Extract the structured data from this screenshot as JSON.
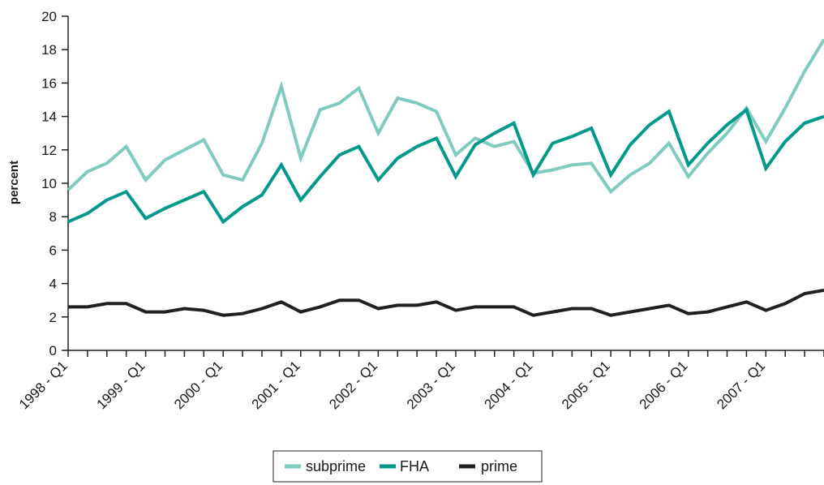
{
  "chart_data": {
    "type": "line",
    "title": "",
    "xlabel": "",
    "ylabel": "percent",
    "ylim": [
      0,
      20
    ],
    "yticks": [
      "0",
      "2",
      "4",
      "6",
      "8",
      "10",
      "12",
      "14",
      "16",
      "18",
      "20"
    ],
    "xtick_labels": [
      "1998 - Q1",
      "1999 - Q1",
      "2000 - Q1",
      "2001 - Q1",
      "2002 - Q1",
      "2003 - Q1",
      "2004 - Q1",
      "2005 - Q1",
      "2006 - Q1",
      "2007 - Q1"
    ],
    "x": [
      "1998 - Q1",
      "1998 - Q2",
      "1998 - Q3",
      "1998 - Q4",
      "1999 - Q1",
      "1999 - Q2",
      "1999 - Q3",
      "1999 - Q4",
      "2000 - Q1",
      "2000 - Q2",
      "2000 - Q3",
      "2000 - Q4",
      "2001 - Q1",
      "2001 - Q2",
      "2001 - Q3",
      "2001 - Q4",
      "2002 - Q1",
      "2002 - Q2",
      "2002 - Q3",
      "2002 - Q4",
      "2003 - Q1",
      "2003 - Q2",
      "2003 - Q3",
      "2003 - Q4",
      "2004 - Q1",
      "2004 - Q2",
      "2004 - Q3",
      "2004 - Q4",
      "2005 - Q1",
      "2005 - Q2",
      "2005 - Q3",
      "2005 - Q4",
      "2006 - Q1",
      "2006 - Q2",
      "2006 - Q3",
      "2006 - Q4",
      "2007 - Q1",
      "2007 - Q2",
      "2007 - Q3",
      "2007 - Q4"
    ],
    "series": [
      {
        "name": "subprime",
        "color": "#7fcbbf",
        "values": [
          9.6,
          10.7,
          11.2,
          12.2,
          10.2,
          11.4,
          12.0,
          12.6,
          10.5,
          10.2,
          12.4,
          15.8,
          11.5,
          14.4,
          14.8,
          15.7,
          13.0,
          15.1,
          14.8,
          14.3,
          11.7,
          12.7,
          12.2,
          12.5,
          10.6,
          10.8,
          11.1,
          11.2,
          9.5,
          10.5,
          11.2,
          12.4,
          10.4,
          11.8,
          13.0,
          14.5,
          12.5,
          14.5,
          16.7,
          18.6
        ]
      },
      {
        "name": "FHA",
        "color": "#00998a",
        "values": [
          7.7,
          8.2,
          9.0,
          9.5,
          7.9,
          8.5,
          9.0,
          9.5,
          7.7,
          8.6,
          9.3,
          11.1,
          9.0,
          10.4,
          11.7,
          12.2,
          10.2,
          11.5,
          12.2,
          12.7,
          10.4,
          12.3,
          13.0,
          13.6,
          10.5,
          12.4,
          12.8,
          13.3,
          10.5,
          12.3,
          13.5,
          14.3,
          11.1,
          12.4,
          13.5,
          14.4,
          10.9,
          12.5,
          13.6,
          14.0
        ]
      },
      {
        "name": "prime",
        "color": "#231f20",
        "values": [
          2.6,
          2.6,
          2.8,
          2.8,
          2.3,
          2.3,
          2.5,
          2.4,
          2.1,
          2.2,
          2.5,
          2.9,
          2.3,
          2.6,
          3.0,
          3.0,
          2.5,
          2.7,
          2.7,
          2.9,
          2.4,
          2.6,
          2.6,
          2.6,
          2.1,
          2.3,
          2.5,
          2.5,
          2.1,
          2.3,
          2.5,
          2.7,
          2.2,
          2.3,
          2.6,
          2.9,
          2.4,
          2.8,
          3.4,
          3.6
        ]
      }
    ],
    "legend_position": "bottom-center",
    "grid": false
  }
}
